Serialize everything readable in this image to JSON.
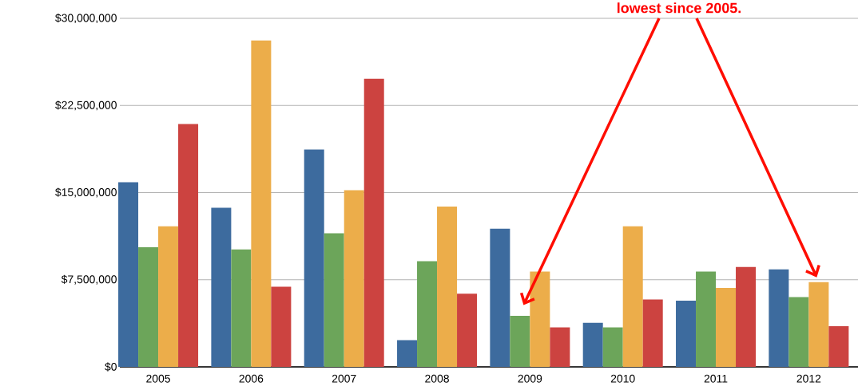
{
  "chart_data": {
    "type": "bar",
    "categories": [
      "2005",
      "2006",
      "2007",
      "2008",
      "2009",
      "2010",
      "2011",
      "2012"
    ],
    "series": [
      {
        "color": "#3d6b9e",
        "values": [
          15900000,
          13700000,
          18700000,
          2300000,
          11900000,
          3800000,
          5700000,
          8400000
        ]
      },
      {
        "color": "#6ca55a",
        "values": [
          10300000,
          10100000,
          11500000,
          9100000,
          4400000,
          3400000,
          8200000,
          6000000
        ]
      },
      {
        "color": "#ecad4a",
        "values": [
          12100000,
          28100000,
          15200000,
          13800000,
          8200000,
          12100000,
          6800000,
          7300000
        ]
      },
      {
        "color": "#cc4340",
        "values": [
          20900000,
          6900000,
          24800000,
          6300000,
          3400000,
          5800000,
          8600000,
          3500000
        ]
      }
    ],
    "ylim": [
      0,
      30000000
    ],
    "yticks": [
      {
        "value": 0,
        "label": "$0"
      },
      {
        "value": 7500000,
        "label": "$7,500,000"
      },
      {
        "value": 15000000,
        "label": "$15,000,000"
      },
      {
        "value": 22500000,
        "label": "$22,500,000"
      },
      {
        "value": 30000000,
        "label": "$30,000,000"
      }
    ],
    "grid": "y",
    "annotations": [
      "lowest since 2005."
    ]
  }
}
